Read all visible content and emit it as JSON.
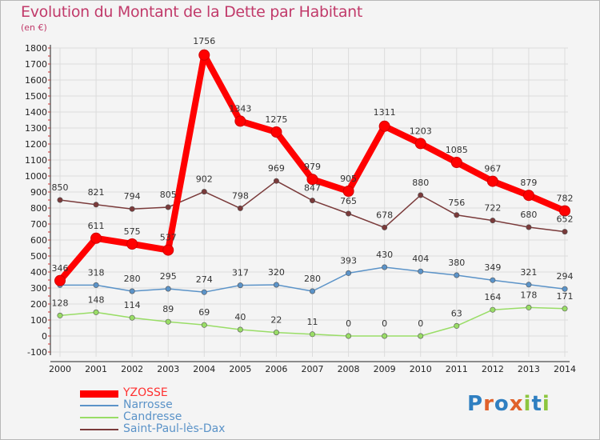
{
  "title": "Evolution du Montant de la Dette par Habitant",
  "subtitle": "(en €)",
  "logo": {
    "letters": [
      "P",
      "r",
      "o",
      "x",
      "i",
      "t",
      "i"
    ],
    "colors": [
      "#2f7fc1",
      "#e0612a",
      "#2f7fc1",
      "#e0612a",
      "#8dc63f",
      "#2f7fc1",
      "#8dc63f"
    ]
  },
  "chart_data": {
    "type": "line",
    "categories": [
      "2000",
      "2001",
      "2002",
      "2003",
      "2004",
      "2005",
      "2006",
      "2007",
      "2008",
      "2009",
      "2010",
      "2011",
      "2012",
      "2013",
      "2014"
    ],
    "ylim": [
      -100,
      1800
    ],
    "yticks": [
      -100,
      0,
      100,
      200,
      300,
      400,
      500,
      600,
      700,
      800,
      900,
      1000,
      1100,
      1200,
      1300,
      1400,
      1500,
      1600,
      1700,
      1800
    ],
    "grid": true,
    "legend_position": "bottom-left",
    "series": [
      {
        "name": "YZOSSE",
        "color": "#ff0000",
        "values": [
          346,
          611,
          575,
          537,
          1756,
          1343,
          1275,
          979,
          905,
          1311,
          1203,
          1085,
          967,
          879,
          782
        ],
        "labels": [
          "346",
          "611",
          "575",
          "537",
          "1756",
          "1343",
          "1275",
          "979",
          "905",
          "1311",
          "1203",
          "1085",
          "967",
          "879",
          "782"
        ]
      },
      {
        "name": "Narrosse",
        "color": "#5b93c8",
        "values": [
          318,
          318,
          280,
          295,
          274,
          317,
          320,
          280,
          393,
          430,
          404,
          380,
          349,
          321,
          294
        ],
        "labels": [
          "",
          "318",
          "280",
          "295",
          "274",
          "317",
          "320",
          "280",
          "393",
          "430",
          "404",
          "380",
          "349",
          "321",
          "294"
        ]
      },
      {
        "name": "Candresse",
        "color": "#99dd66",
        "values": [
          128,
          148,
          114,
          89,
          69,
          40,
          22,
          11,
          0,
          0,
          0,
          63,
          164,
          178,
          171
        ],
        "labels": [
          "128",
          "148",
          "114",
          "89",
          "69",
          "40",
          "22",
          "11",
          "0",
          "0",
          "0",
          "63",
          "164",
          "178",
          "171"
        ]
      },
      {
        "name": "Saint-Paul-lès-Dax",
        "color": "#7a3a3a",
        "values": [
          850,
          821,
          794,
          805,
          902,
          798,
          969,
          847,
          765,
          678,
          880,
          756,
          722,
          680,
          652
        ],
        "labels": [
          "850",
          "821",
          "794",
          "805",
          "902",
          "798",
          "969",
          "847",
          "765",
          "678",
          "880",
          "756",
          "722",
          "680",
          "652"
        ]
      }
    ]
  }
}
